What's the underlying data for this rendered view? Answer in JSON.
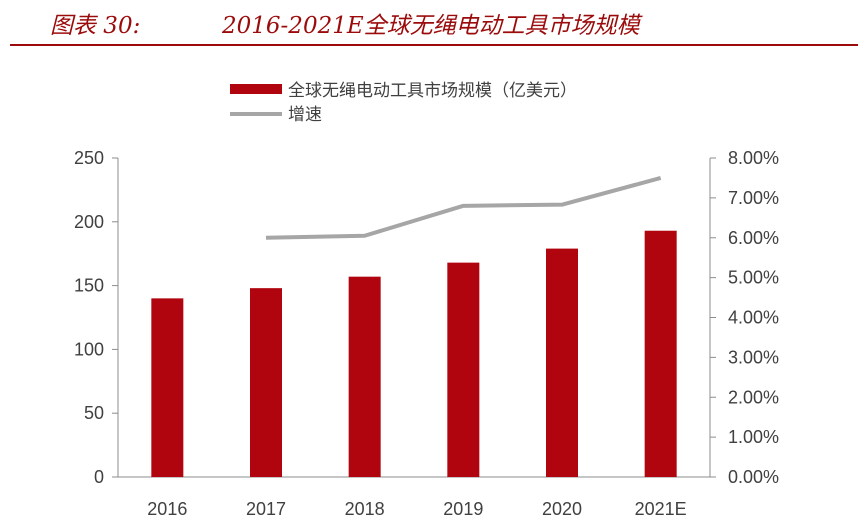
{
  "header": {
    "figure_number": "图表 30:",
    "title": "2016-2021E全球无绳电动工具市场规模"
  },
  "colors": {
    "accent": "#9c0b0b",
    "bar": "#b0050f",
    "line": "#a6a6a6",
    "axis": "#8c8c8c",
    "text": "#404040"
  },
  "chart_data": {
    "type": "bar",
    "categories": [
      "2016",
      "2017",
      "2018",
      "2019",
      "2020",
      "2021E"
    ],
    "series": [
      {
        "name": "全球无绳电动工具市场规模（亿美元）",
        "type": "bar",
        "axis": "left",
        "values": [
          140,
          148,
          157,
          168,
          179,
          193
        ]
      },
      {
        "name": "增速",
        "type": "line",
        "axis": "right",
        "values": [
          null,
          0.06,
          0.0605,
          0.068,
          0.0683,
          0.075
        ]
      }
    ],
    "ylim": [
      0,
      250
    ],
    "yticks": [
      "0",
      "50",
      "100",
      "150",
      "200",
      "250"
    ],
    "y2lim": [
      0,
      0.08
    ],
    "y2ticks": [
      "0.00%",
      "1.00%",
      "2.00%",
      "3.00%",
      "4.00%",
      "5.00%",
      "6.00%",
      "7.00%",
      "8.00%"
    ],
    "legend_position": "top",
    "grid": false
  }
}
